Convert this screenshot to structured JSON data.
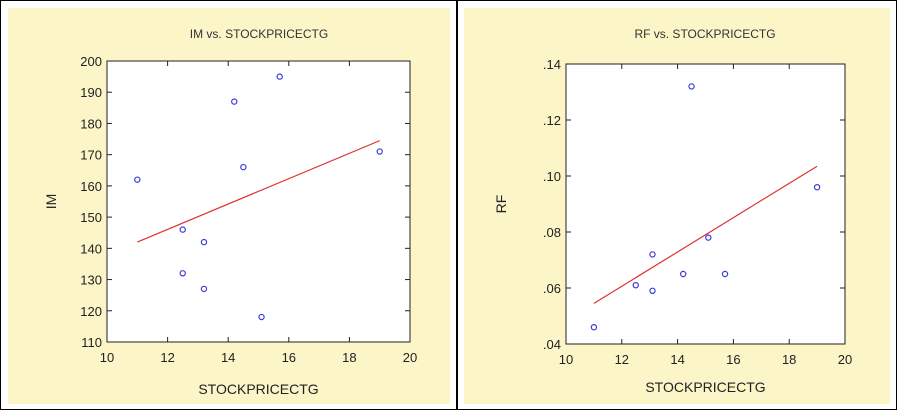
{
  "charts": [
    {
      "type": "scatter",
      "title": "IM vs. STOCKPRICECTG",
      "xlabel": "STOCKPRICECTG",
      "ylabel": "IM",
      "xlim": [
        10,
        20
      ],
      "ylim": [
        110,
        200
      ],
      "xticks": [
        "10",
        "12",
        "14",
        "16",
        "18",
        "20"
      ],
      "yticks": [
        "110",
        "120",
        "130",
        "140",
        "150",
        "160",
        "170",
        "180",
        "190",
        "200"
      ],
      "points": [
        {
          "x": 11.0,
          "y": 162
        },
        {
          "x": 12.5,
          "y": 146
        },
        {
          "x": 12.5,
          "y": 132
        },
        {
          "x": 13.2,
          "y": 142
        },
        {
          "x": 13.2,
          "y": 127
        },
        {
          "x": 14.2,
          "y": 187
        },
        {
          "x": 14.5,
          "y": 166
        },
        {
          "x": 15.1,
          "y": 118
        },
        {
          "x": 15.7,
          "y": 195
        },
        {
          "x": 19.0,
          "y": 171
        }
      ],
      "fit": {
        "x1": 11.0,
        "y1": 142,
        "x2": 19.0,
        "y2": 174.5
      },
      "point_color": "#3b3bd6",
      "fit_color": "#e03030"
    },
    {
      "type": "scatter",
      "title": "RF vs. STOCKPRICECTG",
      "xlabel": "STOCKPRICECTG",
      "ylabel": "RF",
      "xlim": [
        10,
        20
      ],
      "ylim": [
        0.04,
        0.14
      ],
      "xticks": [
        "10",
        "12",
        "14",
        "16",
        "18",
        "20"
      ],
      "yticks": [
        ".04",
        ".06",
        ".08",
        ".10",
        ".12",
        ".14"
      ],
      "points": [
        {
          "x": 11.0,
          "y": 0.046
        },
        {
          "x": 12.5,
          "y": 0.061
        },
        {
          "x": 13.1,
          "y": 0.059
        },
        {
          "x": 13.1,
          "y": 0.072
        },
        {
          "x": 14.2,
          "y": 0.065
        },
        {
          "x": 14.5,
          "y": 0.132
        },
        {
          "x": 15.1,
          "y": 0.078
        },
        {
          "x": 15.7,
          "y": 0.065
        },
        {
          "x": 19.0,
          "y": 0.096
        }
      ],
      "fit": {
        "x1": 11.0,
        "y1": 0.0545,
        "x2": 19.0,
        "y2": 0.1035
      },
      "point_color": "#3b3bd6",
      "fit_color": "#e03030"
    }
  ]
}
